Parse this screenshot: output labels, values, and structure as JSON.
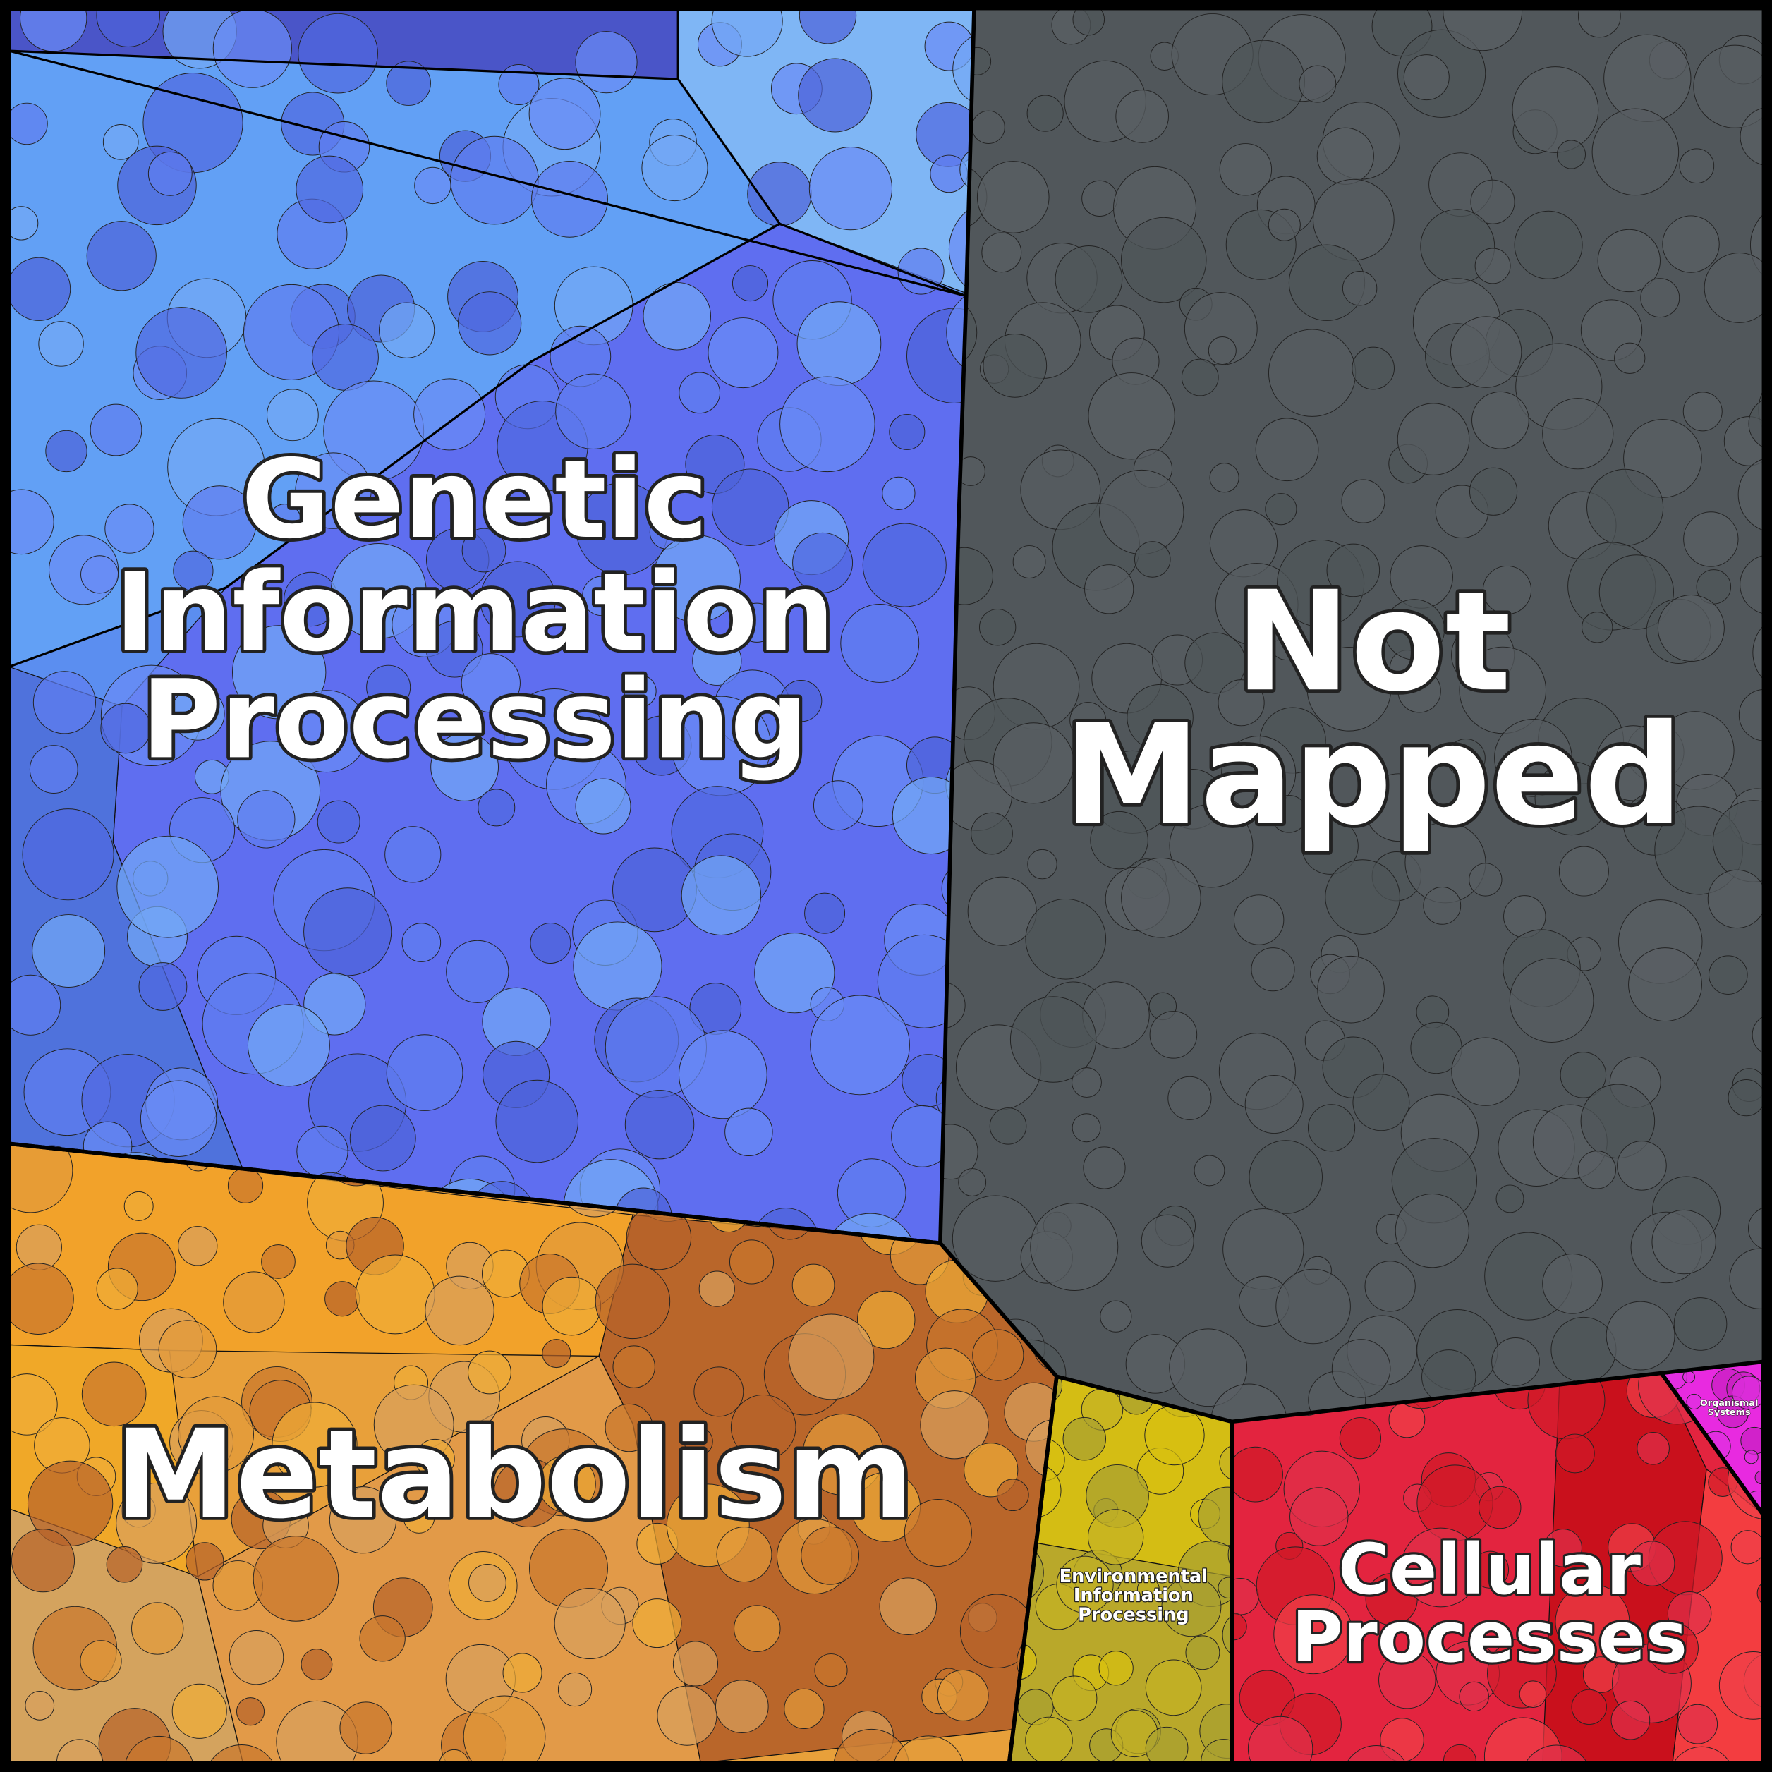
{
  "regions": [
    {
      "label": [
        "Genetic",
        "Information",
        "Processing"
      ]
    },
    {
      "label": [
        "Not",
        "Mapped"
      ]
    },
    {
      "label": [
        "Metabolism"
      ]
    },
    {
      "label": [
        "Environmental",
        "Information",
        "Processing"
      ]
    },
    {
      "label": [
        "Cellular",
        "Processes"
      ]
    },
    {
      "label": [
        "Organismal",
        "Systems"
      ]
    }
  ]
}
